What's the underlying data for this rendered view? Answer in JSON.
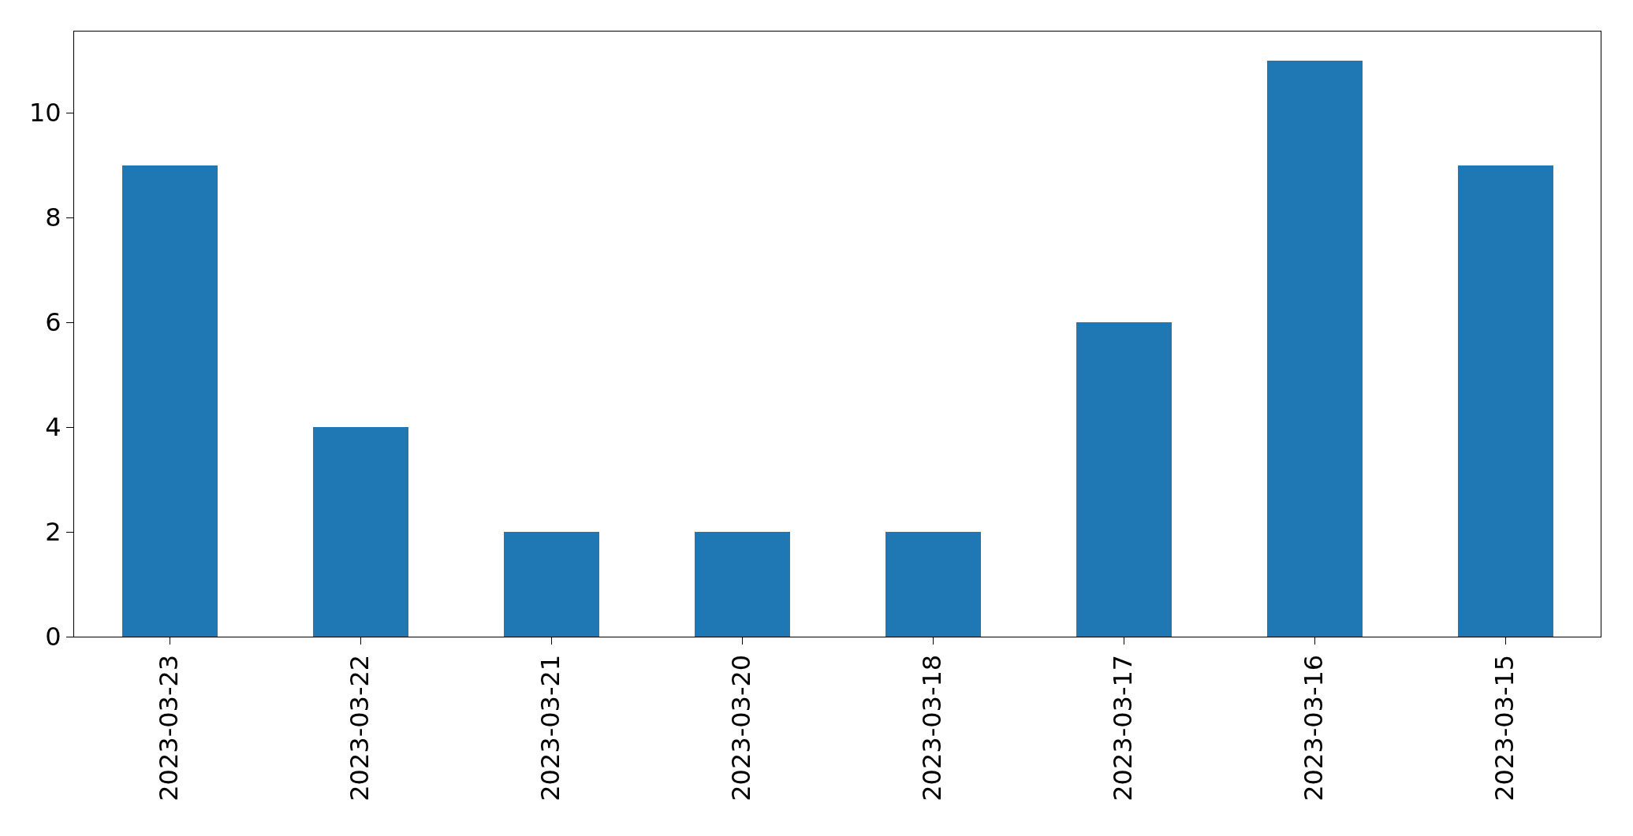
{
  "chart_data": {
    "type": "bar",
    "categories": [
      "2023-03-23",
      "2023-03-22",
      "2023-03-21",
      "2023-03-20",
      "2023-03-18",
      "2023-03-17",
      "2023-03-16",
      "2023-03-15"
    ],
    "values": [
      9,
      4,
      2,
      2,
      2,
      6,
      11,
      9
    ],
    "color": "#1f77b4",
    "ylim": [
      0,
      11.55
    ],
    "yticks": [
      0,
      2,
      4,
      6,
      8,
      10
    ]
  }
}
